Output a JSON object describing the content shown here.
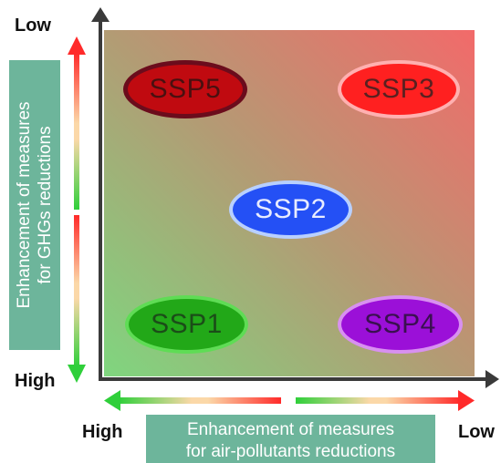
{
  "corners": {
    "y_top": "Low",
    "y_bottom": "High",
    "x_left": "High",
    "x_right": "Low"
  },
  "y_axis_box": {
    "line1": "Enhancement of measures",
    "line2": "for GHGs reductions"
  },
  "x_axis_box": {
    "line1": "Enhancement of measures",
    "line2": "for air-pollutants reductions"
  },
  "scenarios": {
    "ssp1": "SSP1",
    "ssp2": "SSP2",
    "ssp3": "SSP3",
    "ssp4": "SSP4",
    "ssp5": "SSP5"
  },
  "colors": {
    "ssp1": "#22a818",
    "ssp2": "#2450f5",
    "ssp3": "#ff2020",
    "ssp4": "#9b10d8",
    "ssp5": "#c00a10",
    "arrow_high": "#2fcf3a",
    "arrow_low": "#ff2a2a",
    "label_box": "#6db59b"
  }
}
